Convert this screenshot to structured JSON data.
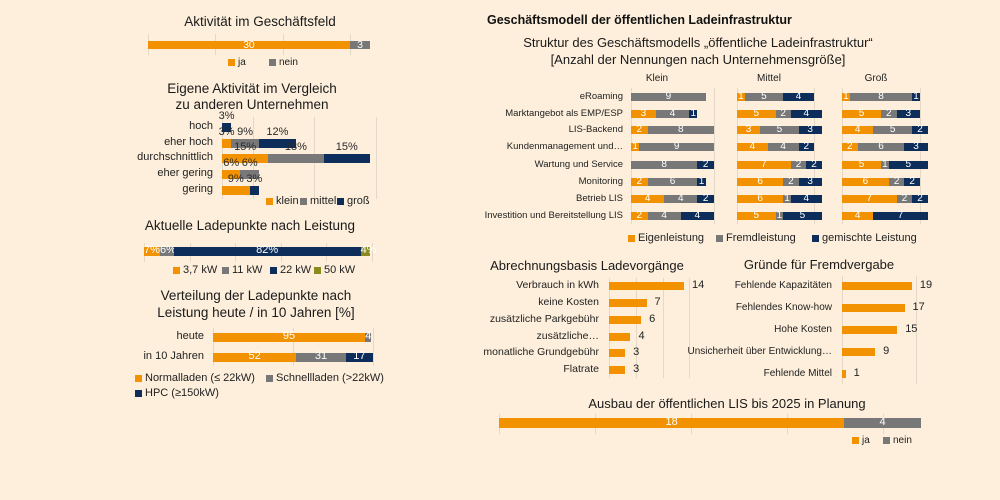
{
  "colors": {
    "background": "#FDEFDB",
    "orange": "#F39200",
    "gray": "#787878",
    "navy": "#0D2D5A",
    "olive": "#8A8A1E"
  },
  "header": {
    "title": "Geschäftsmodell der öffentlichen Ladeinfrastruktur"
  },
  "chart_data": [
    {
      "id": "aktivitaet-geschaeftsfeld",
      "type": "bar",
      "orientation": "horizontal",
      "stacked": true,
      "title": "Aktivität im Geschäftsfeld",
      "categories": [
        ""
      ],
      "series": [
        {
          "name": "ja",
          "values": [
            30
          ],
          "color": "#F39200"
        },
        {
          "name": "nein",
          "values": [
            3
          ],
          "color": "#787878"
        }
      ],
      "xlim": [
        0,
        33
      ],
      "grid": true,
      "legend": "bottom"
    },
    {
      "id": "eigene-aktivitaet",
      "type": "bar",
      "orientation": "horizontal",
      "stacked": true,
      "title_lines": [
        "Eigene Aktivität im Vergleich",
        "zu anderen Unternehmen"
      ],
      "categories": [
        "hoch",
        "eher hoch",
        "durchschnittlich",
        "eher gering",
        "gering"
      ],
      "series": [
        {
          "name": "klein",
          "values": [
            0,
            3,
            15,
            6,
            9
          ],
          "color": "#F39200"
        },
        {
          "name": "mittel",
          "values": [
            0,
            9,
            18,
            6,
            0
          ],
          "color": "#787878"
        },
        {
          "name": "groß",
          "values": [
            3,
            12,
            15,
            0,
            3
          ],
          "color": "#0D2D5A"
        }
      ],
      "value_suffix": "%",
      "grid": true,
      "legend": "bottom-right"
    },
    {
      "id": "ladepunkte-leistung",
      "type": "bar",
      "orientation": "horizontal",
      "stacked": true,
      "title": "Aktuelle Ladepunkte nach Leistung",
      "categories": [
        ""
      ],
      "series": [
        {
          "name": "3,7 kW",
          "values": [
            7
          ],
          "color": "#F39200"
        },
        {
          "name": "11 kW",
          "values": [
            6
          ],
          "color": "#787878"
        },
        {
          "name": "22 kW",
          "values": [
            82
          ],
          "color": "#0D2D5A"
        },
        {
          "name": "50 kW",
          "values": [
            4
          ],
          "color": "#8A8A1E"
        }
      ],
      "value_suffix": "%",
      "xlim": [
        0,
        100
      ],
      "grid": true,
      "legend": "bottom"
    },
    {
      "id": "verteilung-ladepunkte",
      "type": "bar",
      "orientation": "horizontal",
      "stacked": true,
      "title_lines": [
        "Verteilung der Ladepunkte nach",
        "Leistung heute / in 10 Jahren [%]"
      ],
      "categories": [
        "heute",
        "in 10 Jahren"
      ],
      "series": [
        {
          "name": "Normalladen (≤ 22kW)",
          "values": [
            95,
            52
          ],
          "color": "#F39200"
        },
        {
          "name": "Schnellladen (>22kW)",
          "values": [
            4,
            31
          ],
          "color": "#787878"
        },
        {
          "name": "HPC (≥150kW)",
          "values": [
            0,
            17
          ],
          "color": "#0D2D5A"
        }
      ],
      "xlim": [
        0,
        100
      ],
      "grid": true,
      "legend": "bottom"
    },
    {
      "id": "struktur-geschaeftsmodell",
      "type": "bar",
      "orientation": "horizontal",
      "stacked": true,
      "title_lines": [
        "Struktur des Geschäftsmodells „öffentliche Ladeinfrastruktur“",
        "[Anzahl der Nennungen nach Unternehmensgröße]"
      ],
      "categories": [
        "eRoaming",
        "Marktangebot als EMP/ESP",
        "LIS-Backend",
        "Kundenmanagement und…",
        "Wartung und Service",
        "Monitoring",
        "Betrieb LIS",
        "Investition und Bereitstellung LIS"
      ],
      "series_names": [
        "Eigenleistung",
        "Fremdleistung",
        "gemischte Leistung"
      ],
      "series_colors": [
        "#F39200",
        "#787878",
        "#0D2D5A"
      ],
      "panels": [
        {
          "name": "Klein",
          "series": [
            {
              "name": "Eigenleistung",
              "values": [
                0,
                3,
                2,
                1,
                0,
                2,
                4,
                2
              ]
            },
            {
              "name": "Fremdleistung",
              "values": [
                9,
                4,
                8,
                9,
                8,
                6,
                4,
                4
              ]
            },
            {
              "name": "gemischte Leistung",
              "values": [
                0,
                1,
                0,
                0,
                2,
                1,
                2,
                4
              ]
            }
          ]
        },
        {
          "name": "Mittel",
          "series": [
            {
              "name": "Eigenleistung",
              "values": [
                1,
                5,
                3,
                4,
                7,
                6,
                6,
                5
              ]
            },
            {
              "name": "Fremdleistung",
              "values": [
                5,
                2,
                5,
                4,
                2,
                2,
                1,
                1
              ]
            },
            {
              "name": "gemischte Leistung",
              "values": [
                4,
                4,
                3,
                2,
                2,
                3,
                4,
                5
              ]
            }
          ]
        },
        {
          "name": "Groß",
          "series": [
            {
              "name": "Eigenleistung",
              "values": [
                1,
                5,
                4,
                2,
                5,
                6,
                7,
                4
              ]
            },
            {
              "name": "Fremdleistung",
              "values": [
                8,
                2,
                5,
                6,
                1,
                2,
                2,
                0
              ]
            },
            {
              "name": "gemischte Leistung",
              "values": [
                1,
                3,
                2,
                3,
                5,
                2,
                2,
                7
              ]
            }
          ]
        }
      ],
      "grid": true,
      "legend": "bottom"
    },
    {
      "id": "abrechnungsbasis",
      "type": "bar",
      "orientation": "horizontal",
      "title": "Abrechnungsbasis Ladevorgänge",
      "categories": [
        "Verbrauch in kWh",
        "keine Kosten",
        "zusätzliche Parkgebühr",
        "zusätzliche…",
        "monatliche Grundgebühr",
        "Flatrate"
      ],
      "series": [
        {
          "name": "Nennungen",
          "values": [
            14,
            7,
            6,
            4,
            3,
            3
          ],
          "color": "#F39200"
        }
      ],
      "grid": true
    },
    {
      "id": "gruende-fremdvergabe",
      "type": "bar",
      "orientation": "horizontal",
      "title": "Gründe für Fremdvergabe",
      "categories": [
        "Fehlende Kapazitäten",
        "Fehlendes Know-how",
        "Hohe Kosten",
        "Unsicherheit über Entwicklung…",
        "Fehlende Mittel"
      ],
      "series": [
        {
          "name": "Nennungen",
          "values": [
            19,
            17,
            15,
            9,
            1
          ],
          "color": "#F39200"
        }
      ],
      "grid": true
    },
    {
      "id": "ausbau-lis-2025",
      "type": "bar",
      "orientation": "horizontal",
      "stacked": true,
      "title": "Ausbau der öffentlichen LIS bis 2025 in Planung",
      "categories": [
        ""
      ],
      "series": [
        {
          "name": "ja",
          "values": [
            18
          ],
          "color": "#F39200"
        },
        {
          "name": "nein",
          "values": [
            4
          ],
          "color": "#787878"
        }
      ],
      "xlim": [
        0,
        22
      ],
      "grid": true,
      "legend": "bottom-right"
    }
  ]
}
